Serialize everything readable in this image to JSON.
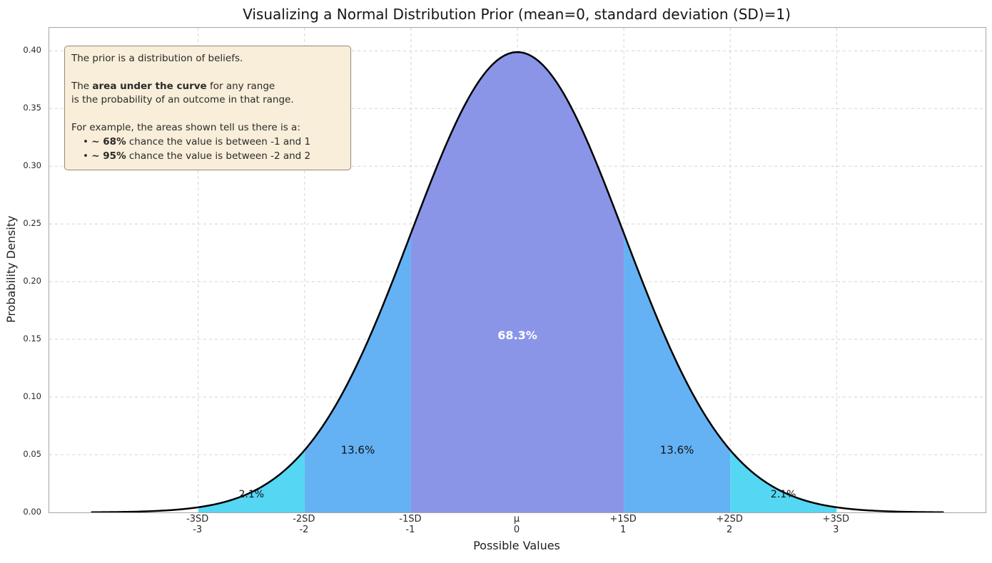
{
  "title": "Visualizing a Normal Distribution Prior (mean=0, standard deviation (SD)=1)",
  "note": {
    "p1": "The prior is a distribution of beliefs.",
    "p2_pre": "The ",
    "p2_bold": "area under the curve",
    "p2_post": " for any range",
    "p2_line2": "is the probability of an outcome in that range.",
    "p3": "For example, the areas shown tell us there is a:",
    "b1_bullet": "• ",
    "b1_bold": "~ 68%",
    "b1_text": " chance the value is between -1 and 1",
    "b2_bullet": "• ",
    "b2_bold": "~ 95%",
    "b2_text": " chance the value is between -2 and 2"
  },
  "chart_data": {
    "type": "area",
    "title": "Visualizing a Normal Distribution Prior (mean=0, standard deviation (SD)=1)",
    "xlabel": "Possible Values",
    "ylabel": "Probability Density",
    "mean": 0,
    "sd": 1,
    "xlim": [
      -4.4,
      4.4
    ],
    "ylim": [
      0,
      0.42
    ],
    "curve_range": [
      -4,
      4
    ],
    "curve_color": "#000000",
    "grid": true,
    "yticks": [
      {
        "value": 0.0,
        "label": "0.00"
      },
      {
        "value": 0.05,
        "label": "0.05"
      },
      {
        "value": 0.1,
        "label": "0.10"
      },
      {
        "value": 0.15,
        "label": "0.15"
      },
      {
        "value": 0.2,
        "label": "0.20"
      },
      {
        "value": 0.25,
        "label": "0.25"
      },
      {
        "value": 0.3,
        "label": "0.30"
      },
      {
        "value": 0.35,
        "label": "0.35"
      },
      {
        "value": 0.4,
        "label": "0.40"
      }
    ],
    "xticks": [
      {
        "value": -3,
        "sd_label": "-3SD",
        "label": "-3"
      },
      {
        "value": -2,
        "sd_label": "-2SD",
        "label": "-2"
      },
      {
        "value": -1,
        "sd_label": "-1SD",
        "label": "-1"
      },
      {
        "value": 0,
        "sd_label": "μ",
        "label": "0"
      },
      {
        "value": 1,
        "sd_label": "+1SD",
        "label": "1"
      },
      {
        "value": 2,
        "sd_label": "+2SD",
        "label": "2"
      },
      {
        "value": 3,
        "sd_label": "+3SD",
        "label": "3"
      }
    ],
    "regions": [
      {
        "from": -3,
        "to": -2,
        "color": "#55d7f3",
        "probability": "2.1%"
      },
      {
        "from": -2,
        "to": -1,
        "color": "#64b2f4",
        "probability": "13.6%"
      },
      {
        "from": -1,
        "to": 1,
        "color": "#8b95e8",
        "probability": "68.3%"
      },
      {
        "from": 1,
        "to": 2,
        "color": "#64b2f4",
        "probability": "13.6%"
      },
      {
        "from": 2,
        "to": 3,
        "color": "#55d7f3",
        "probability": "2.1%"
      }
    ],
    "region_labels": [
      {
        "text": "2.1%",
        "x": -2.5,
        "y": 0.013,
        "color": "#111111",
        "bold": false,
        "size": 14
      },
      {
        "text": "13.6%",
        "x": -1.5,
        "y": 0.051,
        "color": "#111111",
        "bold": false,
        "size": 15
      },
      {
        "text": "68.3%",
        "x": 0,
        "y": 0.15,
        "color": "#ffffff",
        "bold": true,
        "size": 16
      },
      {
        "text": "13.6%",
        "x": 1.5,
        "y": 0.051,
        "color": "#111111",
        "bold": false,
        "size": 15
      },
      {
        "text": "2.1%",
        "x": 2.5,
        "y": 0.013,
        "color": "#111111",
        "bold": false,
        "size": 14
      }
    ]
  }
}
